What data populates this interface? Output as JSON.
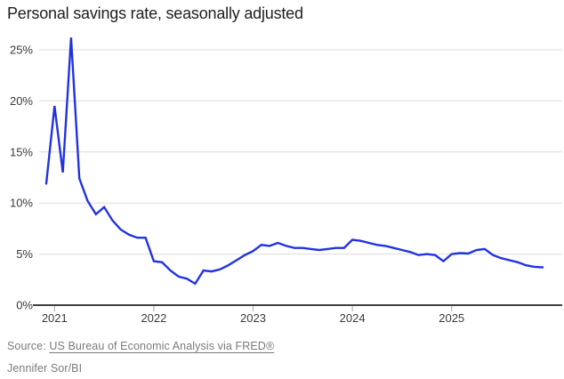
{
  "chart_data": {
    "type": "line",
    "title": "Personal savings rate, seasonally adjusted",
    "frequency": "monthly",
    "x_start": "2020-12",
    "x_end": "2025-12",
    "series": [
      {
        "name": "Personal savings rate (%)",
        "values": [
          11.9,
          19.5,
          13.0,
          26.2,
          12.4,
          10.2,
          8.9,
          9.6,
          8.3,
          7.4,
          6.9,
          6.6,
          6.6,
          4.3,
          4.2,
          3.4,
          2.8,
          2.6,
          2.1,
          3.4,
          3.3,
          3.5,
          3.9,
          4.4,
          4.9,
          5.3,
          5.9,
          5.8,
          6.1,
          5.8,
          5.6,
          5.6,
          5.5,
          5.4,
          5.5,
          5.6,
          5.6,
          6.4,
          6.3,
          6.1,
          5.9,
          5.8,
          5.6,
          5.4,
          5.2,
          4.9,
          5.0,
          4.9,
          4.3,
          5.0,
          5.1,
          5.05,
          5.4,
          5.5,
          4.9,
          4.6,
          4.4,
          4.2,
          3.9,
          3.75,
          3.7
        ]
      }
    ],
    "x_tick_labels": [
      "2021",
      "2022",
      "2023",
      "2024",
      "2025"
    ],
    "y_tick_labels": [
      "0%",
      "5%",
      "10%",
      "15%",
      "20%",
      "25%"
    ],
    "y_tick_values": [
      0,
      5,
      10,
      15,
      20,
      25
    ],
    "ylim": [
      0,
      26.4
    ],
    "grid": "horizontal",
    "legend": "none",
    "colors": {
      "line": "#2133e0",
      "grid": "#dcdcdc",
      "axis": "#000000",
      "tick": "#b3b3b3",
      "axis_label": "#3a3a3a",
      "title": "#1e1e1e",
      "source_text": "#7b7b7b"
    }
  },
  "footer": {
    "source_prefix": "Source: ",
    "source_link": "US Bureau of Economic Analysis via FRED®",
    "credit": "Jennifer Sor/BI"
  }
}
